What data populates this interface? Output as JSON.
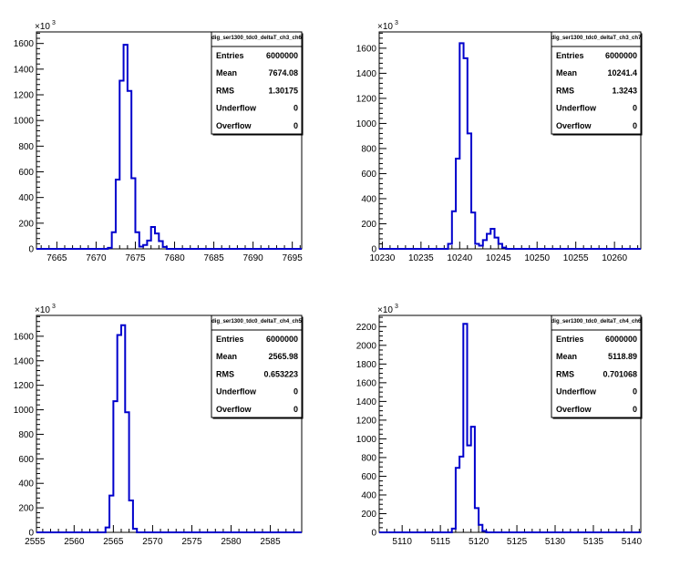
{
  "canvas": {
    "background": "#ffffff",
    "line_color": "#0000cc"
  },
  "chart_data": [
    {
      "type": "histogram",
      "title": "",
      "stats_title": "dig_ser1300_tdc0_deltaT_ch3_ch6",
      "stats": [
        {
          "label": "Entries",
          "value": "6000000"
        },
        {
          "label": "Mean",
          "value": "7674.08"
        },
        {
          "label": "RMS",
          "value": "1.30175"
        },
        {
          "label": "Underflow",
          "value": "0"
        },
        {
          "label": "Overflow",
          "value": "0"
        }
      ],
      "y_multiplier": "×10",
      "y_multiplier_exp": "3",
      "xlim": [
        7662.4,
        7696.2
      ],
      "ylim": [
        0,
        1690
      ],
      "xticks": [
        7665,
        7670,
        7675,
        7680,
        7685,
        7690,
        7695
      ],
      "yticks": [
        0,
        200,
        400,
        600,
        800,
        1000,
        1200,
        1400,
        1600
      ],
      "x_minor_step": 1,
      "y_minor_step": 40,
      "bin_width": 0.5,
      "bins": [
        {
          "x": 7671.5,
          "y": 8
        },
        {
          "x": 7672.0,
          "y": 130
        },
        {
          "x": 7672.5,
          "y": 540
        },
        {
          "x": 7673.0,
          "y": 1310
        },
        {
          "x": 7673.5,
          "y": 1590
        },
        {
          "x": 7674.0,
          "y": 1230
        },
        {
          "x": 7674.5,
          "y": 550
        },
        {
          "x": 7675.0,
          "y": 130
        },
        {
          "x": 7675.5,
          "y": 18
        },
        {
          "x": 7676.0,
          "y": 30
        },
        {
          "x": 7676.5,
          "y": 65
        },
        {
          "x": 7677.0,
          "y": 170
        },
        {
          "x": 7677.5,
          "y": 120
        },
        {
          "x": 7678.0,
          "y": 60
        },
        {
          "x": 7678.5,
          "y": 15
        }
      ]
    },
    {
      "type": "histogram",
      "title": "",
      "stats_title": "dig_ser1300_tdc0_deltaT_ch3_ch7",
      "stats": [
        {
          "label": "Entries",
          "value": "6000000"
        },
        {
          "label": "Mean",
          "value": "10241.4"
        },
        {
          "label": "RMS",
          "value": "1.3243"
        },
        {
          "label": "Underflow",
          "value": "0"
        },
        {
          "label": "Overflow",
          "value": "0"
        }
      ],
      "y_multiplier": "×10",
      "y_multiplier_exp": "3",
      "xlim": [
        10229.6,
        10263.4
      ],
      "ylim": [
        0,
        1730
      ],
      "xticks": [
        10230,
        10235,
        10240,
        10245,
        10250,
        10255,
        10260
      ],
      "yticks": [
        0,
        200,
        400,
        600,
        800,
        1000,
        1200,
        1400,
        1600
      ],
      "x_minor_step": 1,
      "y_minor_step": 40,
      "bin_width": 0.5,
      "bins": [
        {
          "x": 10238.5,
          "y": 40
        },
        {
          "x": 10239.0,
          "y": 300
        },
        {
          "x": 10239.5,
          "y": 720
        },
        {
          "x": 10240.0,
          "y": 1640
        },
        {
          "x": 10240.5,
          "y": 1520
        },
        {
          "x": 10241.0,
          "y": 920
        },
        {
          "x": 10241.5,
          "y": 290
        },
        {
          "x": 10242.0,
          "y": 40
        },
        {
          "x": 10242.5,
          "y": 25
        },
        {
          "x": 10243.0,
          "y": 70
        },
        {
          "x": 10243.5,
          "y": 120
        },
        {
          "x": 10244.0,
          "y": 160
        },
        {
          "x": 10244.5,
          "y": 90
        },
        {
          "x": 10245.0,
          "y": 40
        },
        {
          "x": 10245.5,
          "y": 10
        }
      ]
    },
    {
      "type": "histogram",
      "title": "",
      "stats_title": "dig_ser1300_tdc0_deltaT_ch4_ch5",
      "stats": [
        {
          "label": "Entries",
          "value": "6000000"
        },
        {
          "label": "Mean",
          "value": "2565.98"
        },
        {
          "label": "RMS",
          "value": "0.653223"
        },
        {
          "label": "Underflow",
          "value": "0"
        },
        {
          "label": "Overflow",
          "value": "0"
        }
      ],
      "y_multiplier": "×10",
      "y_multiplier_exp": "3",
      "xlim": [
        2555.2,
        2589.0
      ],
      "ylim": [
        0,
        1770
      ],
      "xticks": [
        2555,
        2560,
        2565,
        2570,
        2575,
        2580,
        2585
      ],
      "yticks": [
        0,
        200,
        400,
        600,
        800,
        1000,
        1200,
        1400,
        1600
      ],
      "x_minor_step": 1,
      "y_minor_step": 40,
      "bin_width": 0.5,
      "bins": [
        {
          "x": 2564.0,
          "y": 40
        },
        {
          "x": 2564.5,
          "y": 300
        },
        {
          "x": 2565.0,
          "y": 1070
        },
        {
          "x": 2565.5,
          "y": 1610
        },
        {
          "x": 2566.0,
          "y": 1690
        },
        {
          "x": 2566.5,
          "y": 980
        },
        {
          "x": 2567.0,
          "y": 260
        },
        {
          "x": 2567.5,
          "y": 30
        }
      ]
    },
    {
      "type": "histogram",
      "title": "",
      "stats_title": "dig_ser1300_tdc0_deltaT_ch4_ch6",
      "stats": [
        {
          "label": "Entries",
          "value": "6000000"
        },
        {
          "label": "Mean",
          "value": "5118.89"
        },
        {
          "label": "RMS",
          "value": "0.701068"
        },
        {
          "label": "Underflow",
          "value": "0"
        },
        {
          "label": "Overflow",
          "value": "0"
        }
      ],
      "y_multiplier": "×10",
      "y_multiplier_exp": "3",
      "xlim": [
        5107.0,
        5141.2
      ],
      "ylim": [
        0,
        2320
      ],
      "xticks": [
        5110,
        5115,
        5120,
        5125,
        5130,
        5135,
        5140
      ],
      "yticks": [
        0,
        200,
        400,
        600,
        800,
        1000,
        1200,
        1400,
        1600,
        1800,
        2000,
        2200
      ],
      "x_minor_step": 1,
      "y_minor_step": 50,
      "bin_width": 0.5,
      "bins": [
        {
          "x": 5116.5,
          "y": 40
        },
        {
          "x": 5117.0,
          "y": 690
        },
        {
          "x": 5117.5,
          "y": 810
        },
        {
          "x": 5118.0,
          "y": 2230
        },
        {
          "x": 5118.5,
          "y": 930
        },
        {
          "x": 5119.0,
          "y": 1130
        },
        {
          "x": 5119.5,
          "y": 260
        },
        {
          "x": 5120.0,
          "y": 80
        },
        {
          "x": 5120.5,
          "y": 15
        }
      ]
    }
  ]
}
